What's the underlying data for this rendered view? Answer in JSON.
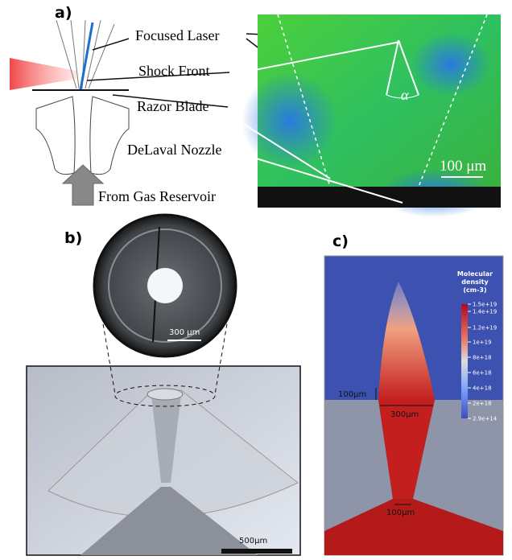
{
  "panel_a": {
    "label": "a)",
    "annotations": [
      "Focused Laser",
      "Shock Front",
      "Razor Blade",
      "DeLaval Nozzle",
      "From Gas Reservoir"
    ],
    "scale_bar": "100 μm",
    "angle": "α"
  },
  "panel_b": {
    "label": "b)",
    "inset_scale_bar": "300 µm",
    "scale_bar": "500µm"
  },
  "panel_c": {
    "label": "c)",
    "colorbar_title": [
      "Molecular",
      "density",
      "(cm-3)"
    ],
    "colorbar_ticks": [
      "1.5e+19",
      "1.4e+19",
      "1.2e+19",
      "1e+19",
      "8e+18",
      "6e+18",
      "4e+18",
      "2e+18",
      "2.9e+14"
    ],
    "dimensions": [
      "100µm",
      "300µm",
      "100µm"
    ]
  }
}
